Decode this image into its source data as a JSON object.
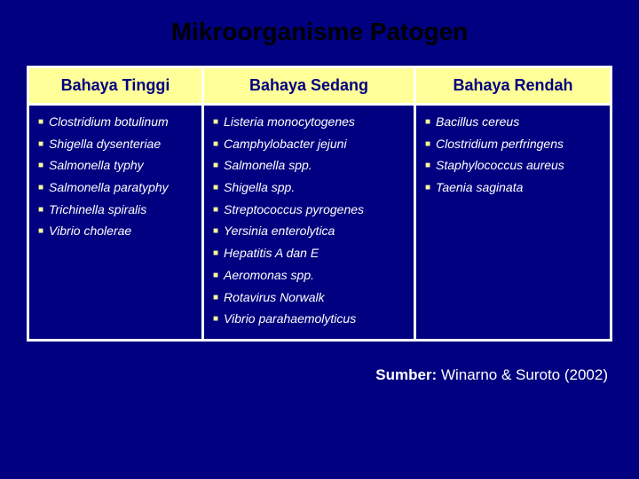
{
  "title": "Mikroorganisme Patogen",
  "colors": {
    "background": "#000080",
    "header_bg": "#ffff99",
    "header_text": "#000080",
    "border": "#ffffff",
    "bullet": "#ffff99",
    "item_text": "#ffffff",
    "title_text": "#000000"
  },
  "columns": [
    {
      "header": "Bahaya Tinggi",
      "items": [
        "Clostridium botulinum",
        "Shigella dysenteriae",
        "Salmonella typhy",
        "Salmonella paratyphy",
        "Trichinella spiralis",
        "Vibrio cholerae"
      ]
    },
    {
      "header": "Bahaya Sedang",
      "items": [
        "Listeria monocytogenes",
        "Camphylobacter jejuni",
        "Salmonella spp.",
        "Shigella spp.",
        "Streptococcus pyrogenes",
        "Yersinia enterolytica",
        "Hepatitis A dan E",
        "Aeromonas spp.",
        "Rotavirus Norwalk",
        "Vibrio parahaemolyticus"
      ]
    },
    {
      "header": "Bahaya Rendah",
      "items": [
        "Bacillus cereus",
        "Clostridium perfringens",
        "Staphylococcus aureus",
        "Taenia saginata"
      ]
    }
  ],
  "source": {
    "label": "Sumber:",
    "text": "Winarno & Suroto (2002)"
  }
}
